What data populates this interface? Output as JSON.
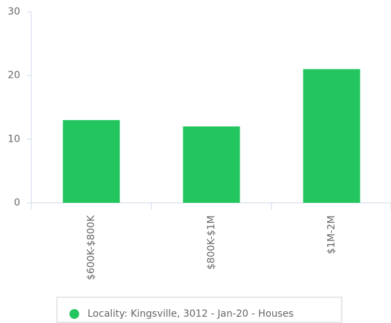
{
  "chart_data": {
    "type": "bar",
    "categories": [
      "$600K-$800K",
      "$800K-$1M",
      "$1M-2M"
    ],
    "series": [
      {
        "name": "Locality: Kingsville, 3012 - Jan-20 - Houses",
        "color": "#22c55e",
        "values": [
          13,
          12,
          21
        ]
      }
    ],
    "ylim": [
      0,
      30
    ],
    "yticks": [
      0,
      10,
      20,
      30
    ],
    "legend": "bottom"
  }
}
